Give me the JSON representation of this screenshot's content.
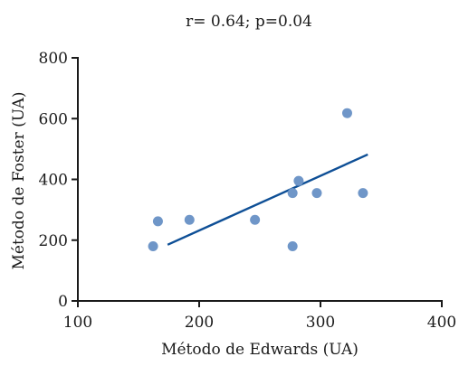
{
  "chart_data": {
    "type": "scatter",
    "title": "r= 0.64; p=0.04",
    "xlabel": "Método de Edwards (UA)",
    "ylabel": "Método de Foster (UA)",
    "xlim": [
      100,
      400
    ],
    "ylim": [
      0,
      800
    ],
    "x_ticks": [
      100,
      200,
      300,
      400
    ],
    "y_ticks": [
      0,
      200,
      400,
      600,
      800
    ],
    "x_tick_labels": [
      "100",
      "200",
      "300",
      "400"
    ],
    "y_tick_labels": [
      "0",
      "200",
      "400",
      "600",
      "800"
    ],
    "grid": false,
    "legend": "none",
    "series": [
      {
        "points": [
          {
            "x": 162,
            "y": 180
          },
          {
            "x": 166,
            "y": 262
          },
          {
            "x": 192,
            "y": 267
          },
          {
            "x": 246,
            "y": 267
          },
          {
            "x": 277,
            "y": 180
          },
          {
            "x": 277,
            "y": 355
          },
          {
            "x": 282,
            "y": 395
          },
          {
            "x": 297,
            "y": 355
          },
          {
            "x": 322,
            "y": 618
          },
          {
            "x": 335,
            "y": 355
          }
        ]
      }
    ],
    "trendline": {
      "x": [
        174,
        339
      ],
      "y": [
        185,
        482
      ]
    },
    "colors": {
      "points": "#6f96c8",
      "trendline": "#0e4f96",
      "axis": "#1a1a1a"
    }
  }
}
